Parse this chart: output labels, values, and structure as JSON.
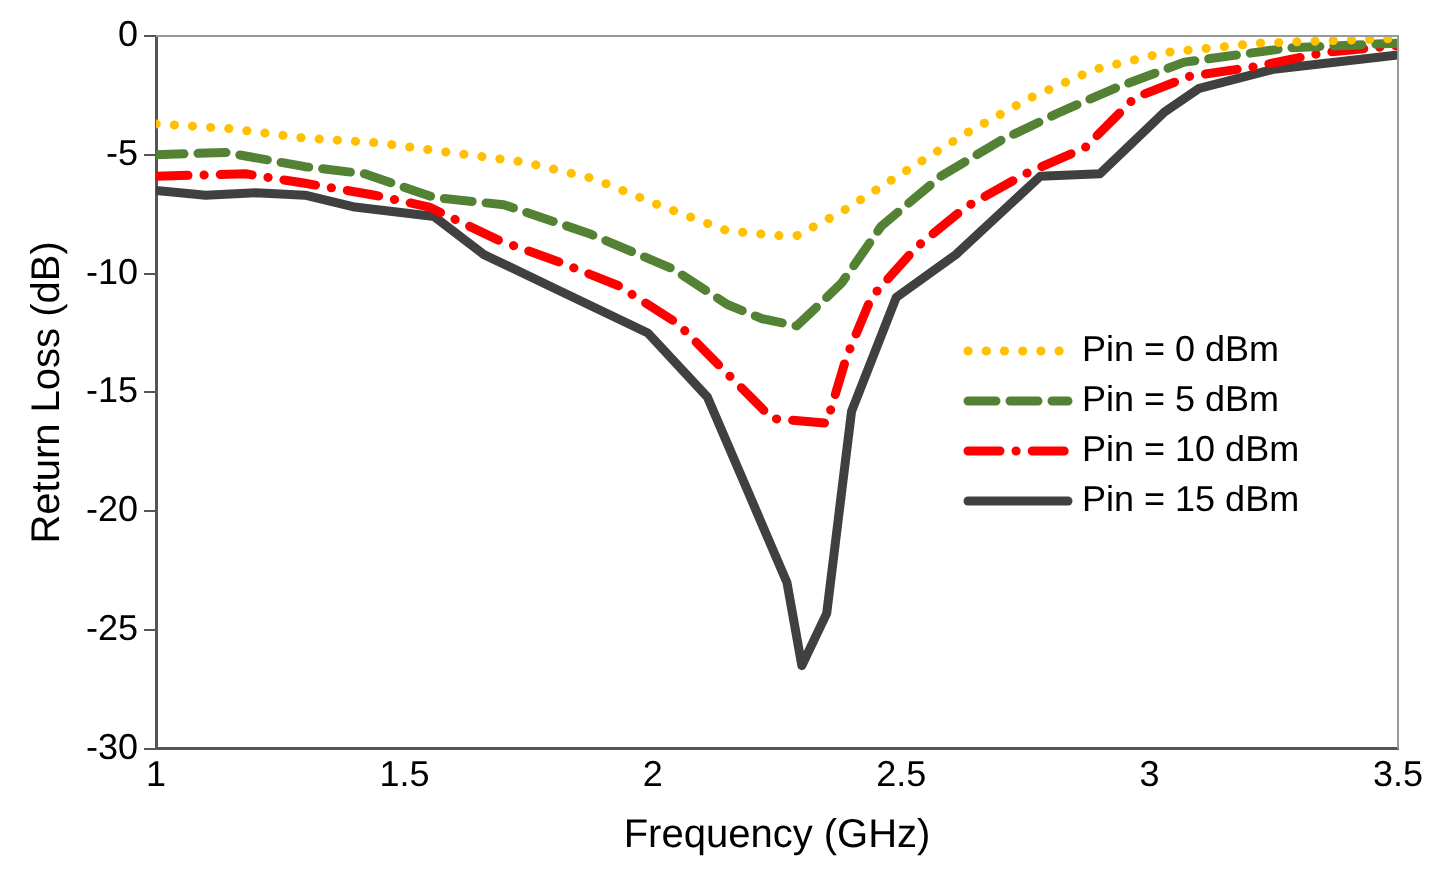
{
  "chart_data": {
    "type": "line",
    "xlabel": "Frequency (GHz)",
    "ylabel": "Return Loss (dB)",
    "xlim": [
      1,
      3.5
    ],
    "xticks": [
      1,
      1.5,
      2,
      2.5,
      3,
      3.5
    ],
    "ylim": [
      -30,
      0
    ],
    "yticks": [
      -30,
      -25,
      -20,
      -15,
      -10,
      -5,
      0
    ],
    "grid": false,
    "legend": "right",
    "marker": "none",
    "series": [
      {
        "name": "Pin = 0 dBm",
        "color": "#ffc000",
        "line_style": "dotted",
        "x": [
          1,
          1.15,
          1.3,
          1.45,
          1.59,
          1.74,
          1.88,
          2.01,
          2.15,
          2.25,
          2.29,
          2.38,
          2.5,
          2.63,
          2.76,
          2.89,
          3.03,
          3.22,
          3.5
        ],
        "values": [
          -3.7,
          -3.9,
          -4.3,
          -4.5,
          -4.9,
          -5.3,
          -6,
          -7.1,
          -8.2,
          -8.4,
          -8.4,
          -7.4,
          -5.8,
          -4.1,
          -2.6,
          -1.4,
          -0.7,
          -0.3,
          -0.1
        ]
      },
      {
        "name": "Pin = 5 dBm",
        "color": "#548235",
        "line_style": "dashed",
        "x": [
          1,
          1.14,
          1.3,
          1.42,
          1.56,
          1.7,
          1.87,
          2.04,
          2.15,
          2.22,
          2.29,
          2.38,
          2.46,
          2.58,
          2.7,
          2.82,
          2.93,
          3.07,
          3.28,
          3.5
        ],
        "values": [
          -5,
          -4.9,
          -5.5,
          -5.8,
          -6.8,
          -7.1,
          -8.3,
          -9.8,
          -11.3,
          -11.9,
          -12.2,
          -10.4,
          -8,
          -5.9,
          -4.4,
          -3.2,
          -2.2,
          -1.1,
          -0.5,
          -0.3
        ]
      },
      {
        "name": "Pin = 10 dBm",
        "color": "#ff0000",
        "line_style": "dashdot",
        "x": [
          1,
          1.18,
          1.3,
          1.44,
          1.55,
          1.69,
          1.81,
          1.93,
          2.05,
          2.14,
          2.24,
          2.35,
          2.39,
          2.44,
          2.53,
          2.63,
          2.75,
          2.87,
          2.97,
          3.08,
          3.21,
          3.35,
          3.5
        ],
        "values": [
          -5.9,
          -5.8,
          -6.2,
          -6.7,
          -7.2,
          -8.6,
          -9.5,
          -10.5,
          -12.1,
          -14,
          -16.1,
          -16.3,
          -13.5,
          -11,
          -8.9,
          -7.2,
          -5.8,
          -4.7,
          -2.6,
          -1.7,
          -1.3,
          -0.7,
          -0.4
        ]
      },
      {
        "name": "Pin = 15 dBm",
        "color": "#404040",
        "line_style": "solid",
        "x": [
          1,
          1.1,
          1.2,
          1.3,
          1.4,
          1.56,
          1.66,
          1.81,
          1.99,
          2.11,
          2.19,
          2.27,
          2.3,
          2.35,
          2.4,
          2.49,
          2.61,
          2.78,
          2.9,
          3.03,
          3.1,
          3.25,
          3.5
        ],
        "values": [
          -6.5,
          -6.7,
          -6.6,
          -6.7,
          -7.2,
          -7.6,
          -9.2,
          -10.7,
          -12.5,
          -15.2,
          -19.1,
          -23,
          -26.5,
          -24.3,
          -15.8,
          -11,
          -9.2,
          -5.9,
          -5.8,
          -3.2,
          -2.2,
          -1.4,
          -0.8
        ]
      }
    ]
  }
}
